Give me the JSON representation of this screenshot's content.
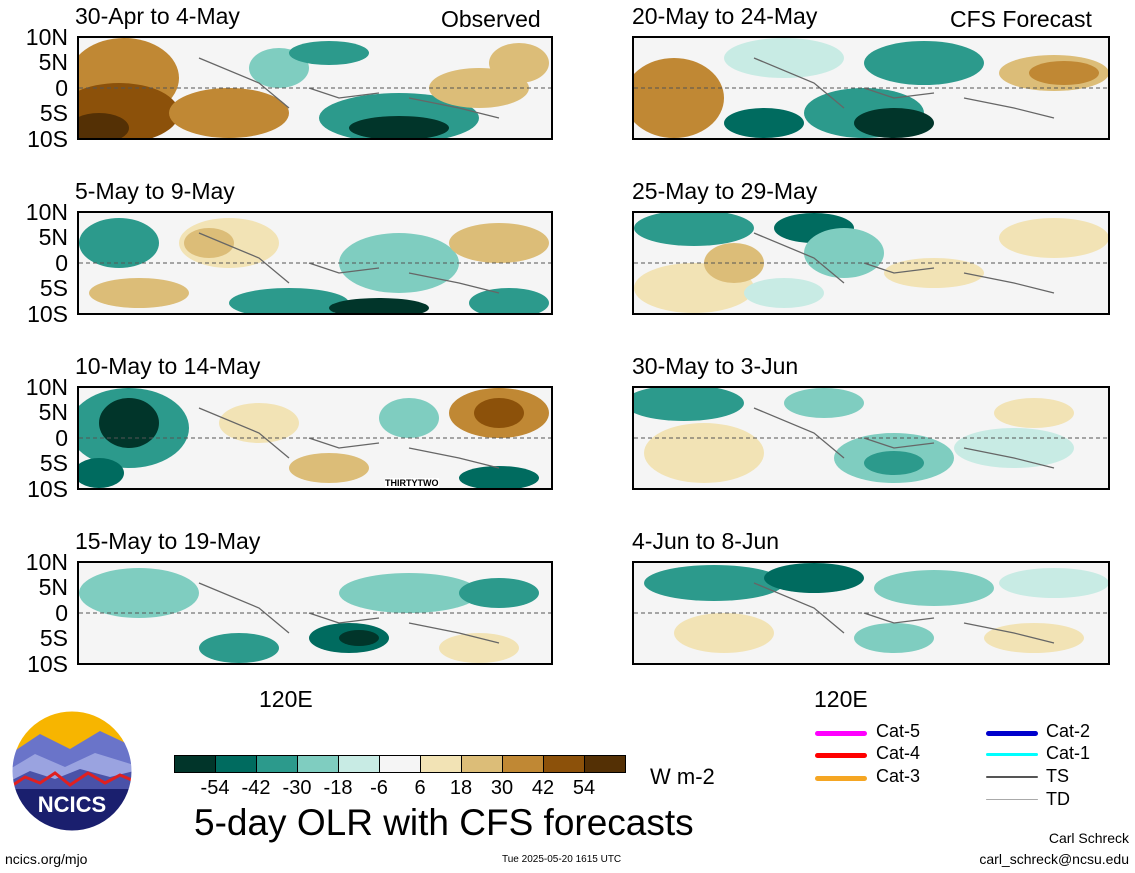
{
  "main_title": "5-day OLR with CFS forecasts",
  "units": "W m-2",
  "column_headers": {
    "observed": "Observed",
    "forecast": "CFS Forecast"
  },
  "lat_labels": [
    "10N",
    "5N",
    "0",
    "5S",
    "10S"
  ],
  "lon_label": "120E",
  "panels_left": [
    {
      "title": "30-Apr to 4-May"
    },
    {
      "title": "5-May to 9-May"
    },
    {
      "title": "10-May to 14-May",
      "annotation": "THIRTYTWO"
    },
    {
      "title": "15-May to 19-May"
    }
  ],
  "panels_right": [
    {
      "title": "20-May to 24-May"
    },
    {
      "title": "25-May to 29-May"
    },
    {
      "title": "30-May to 3-Jun"
    },
    {
      "title": "4-Jun to 8-Jun"
    }
  ],
  "colorbar": {
    "labels": [
      "-54",
      "-42",
      "-30",
      "-18",
      "-6",
      "6",
      "18",
      "30",
      "42",
      "54"
    ],
    "colors": [
      "#01352a",
      "#006b5f",
      "#2c9a8c",
      "#7fcdc0",
      "#c8ebe4",
      "#f5f5f5",
      "#f2e3b5",
      "#dcbd78",
      "#c08834",
      "#8c510a",
      "#543005"
    ]
  },
  "legend": [
    {
      "label": "Cat-5",
      "color": "#ff00ff"
    },
    {
      "label": "Cat-4",
      "color": "#ff0000"
    },
    {
      "label": "Cat-3",
      "color": "#f5a623"
    },
    {
      "label": "Cat-2",
      "color": "#0000cc"
    },
    {
      "label": "Cat-1",
      "color": "#00ffff"
    },
    {
      "label": "TS",
      "color": "#555555"
    },
    {
      "label": "TD",
      "color": "#aaaaaa"
    }
  ],
  "logo_text": "NCICS",
  "footer": {
    "url": "ncics.org/mjo",
    "timestamp": "Tue 2025-05-20 1615 UTC",
    "author": "Carl Schreck",
    "email": "carl_schreck@ncsu.edu"
  }
}
